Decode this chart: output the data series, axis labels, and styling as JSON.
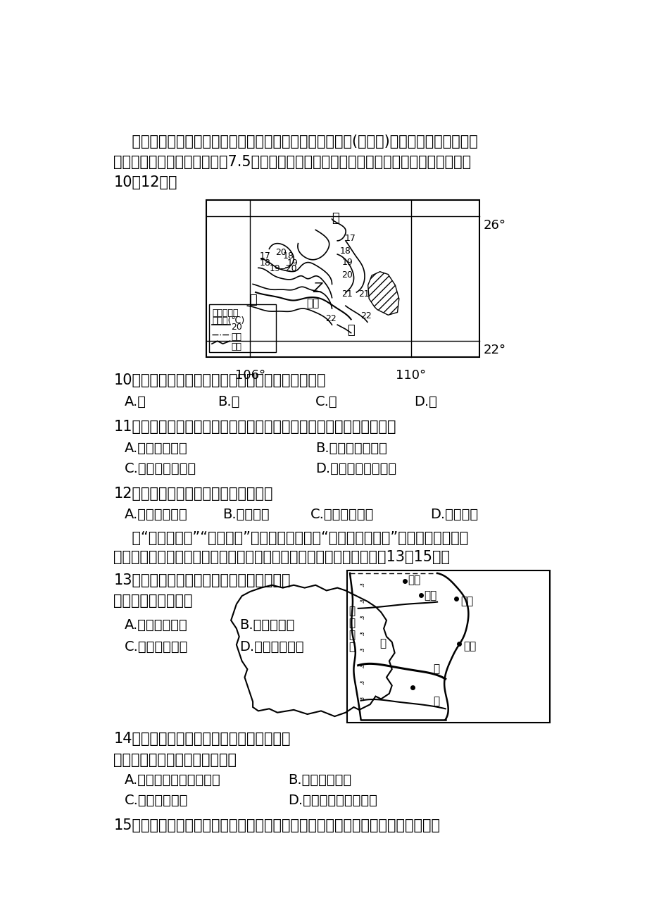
{
  "bg_color": "#ffffff",
  "text_color": "#000000",
  "font_size_body": 15,
  "font_size_small": 13,
  "intro1": "    木薇是喜高温、不耐霜雪作物，也是生物质能源燃料乙醇(新能源)的重要原料。每生产燃",
  "intro2": "料乙醇１吨需要消耗鲜木薇坠7.5吨。下图是某省级行政区年均温分布图，读图和材料回答",
  "intro3": "10～12题。",
  "q10": "10、上图所示区域最适宜种植木薇的地方是（　　）",
  "q10A": "A.甲",
  "q10B": "B.乙",
  "q10C": "C.丙",
  "q10D": "D.丁",
  "q11": "11、与化石能源相比，种植木薇、发展木薇燃料乙醇的优点是（　　）",
  "q11A": "A.节约土地资源",
  "q11B": "B.原料有可再生性",
  "q11C": "C.减少原料运输量",
  "q11D": "D.原料适宜长期储存",
  "q12": "12、该区域地势的总体特征是（　　）",
  "q12A": "A.西北高东南低",
  "q12B": "B.东高西低",
  "q12C": "C.中间高四周低",
  "q12D": "D.南高北低",
  "intro_bohai1": "    继“西部大开发”“中部崛起”后，我国又制订了“实现东部新跨越”的战略方针，环渤",
  "intro_bohai2": "海经济圈作为东部的一个重要组成部分，正在加速崛起。读下图，完成13～15题。",
  "q13": "13、目前，影响环渤海经济圈可持续发展的",
  "q13cont": "首要因素是（　　）",
  "q13A": "A.矿产资源不足",
  "q13B": "B.水资源短缺",
  "q13C": "C.人口密度较大",
  "q13D": "D.洪水灾害频发",
  "q14": "14、甲地是我国重要的商品棉基地，其棉花",
  "q14cont": "生长的主要有利条件是（　　）",
  "q14A": "A.光热条件好，雨热同期",
  "q14B": "B.地势平坦开阔",
  "q14C": "C.土壤深厚肥沃",
  "q14D": "D.降水丰富，水源充足",
  "q15": "15、天津、青岛、大连吸引外资企业纷纷落户，其共同的优势区位条件是（　　）"
}
